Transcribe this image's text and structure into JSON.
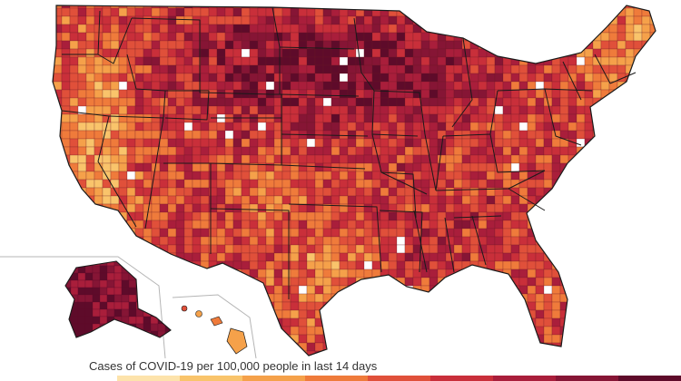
{
  "map": {
    "legend_title": "Cases of COVID-19 per 100,000 people in last 14 days",
    "colors": {
      "background": "#ffffff",
      "border": "#1a1a1a",
      "scale": [
        "#ffffff",
        "#fde3ab",
        "#f9c46b",
        "#f5a14a",
        "#ef7b3b",
        "#e0503a",
        "#c92f3a",
        "#a91e3b",
        "#861535",
        "#5e0b2a"
      ]
    }
  }
}
